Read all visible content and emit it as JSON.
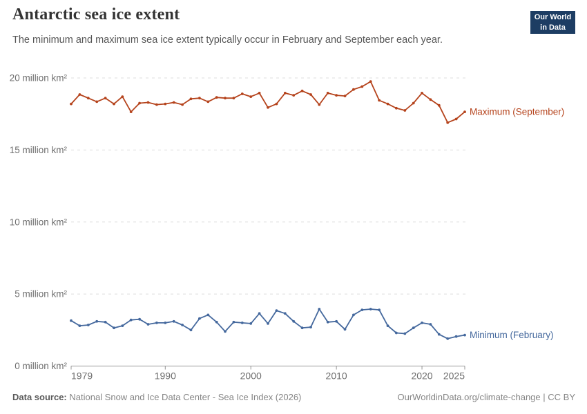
{
  "header": {
    "title": "Antarctic sea ice extent",
    "subtitle": "The minimum and maximum sea ice extent typically occur in February and September each year.",
    "logo": {
      "line1": "Our World",
      "line2": "in Data",
      "bg_color": "#1d3d63",
      "bar_color": "#dc3b32"
    }
  },
  "chart_data": {
    "type": "line",
    "title": "Antarctic sea ice extent",
    "xlabel": "",
    "ylabel": "million km²",
    "ylim": [
      0,
      20
    ],
    "grid": "horizontal dashed",
    "legend_position": "right-of-line-end",
    "x": [
      1979,
      1980,
      1981,
      1982,
      1983,
      1984,
      1985,
      1986,
      1987,
      1988,
      1989,
      1990,
      1991,
      1992,
      1993,
      1994,
      1995,
      1996,
      1997,
      1998,
      1999,
      2000,
      2001,
      2002,
      2003,
      2004,
      2005,
      2006,
      2007,
      2008,
      2009,
      2010,
      2011,
      2012,
      2013,
      2014,
      2015,
      2016,
      2017,
      2018,
      2019,
      2020,
      2021,
      2022,
      2023,
      2024,
      2025
    ],
    "series": [
      {
        "name": "Maximum (September)",
        "color": "#b5431c",
        "values": [
          18.2,
          18.85,
          18.6,
          18.35,
          18.6,
          18.2,
          18.7,
          17.65,
          18.25,
          18.3,
          18.15,
          18.2,
          18.3,
          18.15,
          18.55,
          18.6,
          18.35,
          18.65,
          18.6,
          18.6,
          18.9,
          18.7,
          18.95,
          17.95,
          18.2,
          18.95,
          18.8,
          19.1,
          18.85,
          18.15,
          18.95,
          18.8,
          18.75,
          19.2,
          19.4,
          19.75,
          18.45,
          18.2,
          17.9,
          17.75,
          18.25,
          18.95,
          18.5,
          18.1,
          16.9,
          17.15,
          17.65
        ]
      },
      {
        "name": "Minimum (February)",
        "color": "#44689d",
        "values": [
          3.15,
          2.8,
          2.85,
          3.1,
          3.05,
          2.65,
          2.8,
          3.2,
          3.25,
          2.9,
          3.0,
          3.0,
          3.1,
          2.85,
          2.5,
          3.3,
          3.55,
          3.05,
          2.4,
          3.05,
          3.0,
          2.95,
          3.65,
          2.95,
          3.85,
          3.65,
          3.1,
          2.65,
          2.7,
          3.95,
          3.05,
          3.1,
          2.55,
          3.55,
          3.9,
          3.95,
          3.9,
          2.8,
          2.3,
          2.25,
          2.65,
          3.0,
          2.9,
          2.2,
          1.9,
          2.05,
          2.15
        ]
      }
    ],
    "yticks": [
      {
        "value": 20,
        "label": "20 million km²"
      },
      {
        "value": 15,
        "label": "15 million km²"
      },
      {
        "value": 10,
        "label": "10 million km²"
      },
      {
        "value": 5,
        "label": "5 million km²"
      },
      {
        "value": 0,
        "label": "0 million km²"
      }
    ],
    "xticks": [
      1979,
      1990,
      2000,
      2010,
      2020,
      2025
    ]
  },
  "footer": {
    "source_label": "Data source:",
    "source_text": " National Snow and Ice Data Center - Sea Ice Index (2026)",
    "credit_link": "OurWorldinData.org/climate-change",
    "credit_suffix": " | CC BY"
  }
}
